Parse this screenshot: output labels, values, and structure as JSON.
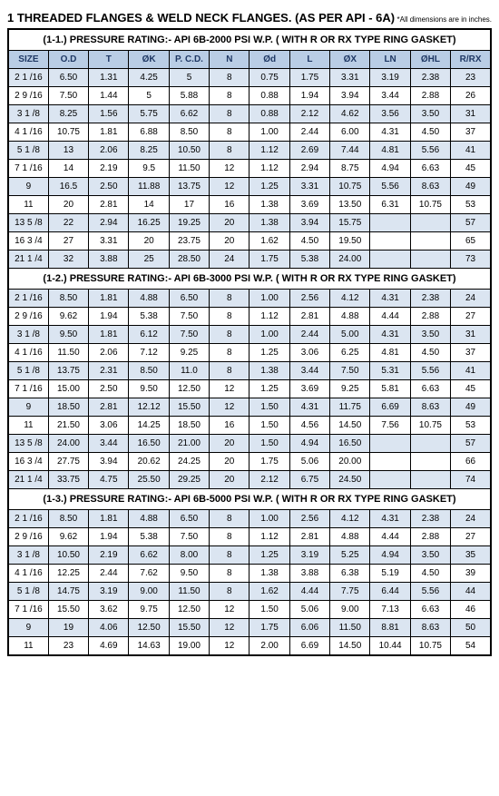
{
  "title": "1  THREADED FLANGES & WELD NECK FLANGES. (AS PER API - 6A)",
  "note": "*All dimensions are in inches.",
  "columns": [
    "SIZE",
    "O.D",
    "T",
    "ØK",
    "P. C.D.",
    "N",
    "Ød",
    "L",
    "ØX",
    "LN",
    "ØHL",
    "R/RX"
  ],
  "sections": [
    {
      "title": "(1-1.)  PRESSURE RATING:- API 6B-2000 PSI W.P. ( WITH R OR RX TYPE RING GASKET)",
      "rows": [
        [
          "2 1 /16",
          "6.50",
          "1.31",
          "4.25",
          "5",
          "8",
          "0.75",
          "1.75",
          "3.31",
          "3.19",
          "2.38",
          "23"
        ],
        [
          "2 9 /16",
          "7.50",
          "1.44",
          "5",
          "5.88",
          "8",
          "0.88",
          "1.94",
          "3.94",
          "3.44",
          "2.88",
          "26"
        ],
        [
          "3 1 /8",
          "8.25",
          "1.56",
          "5.75",
          "6.62",
          "8",
          "0.88",
          "2.12",
          "4.62",
          "3.56",
          "3.50",
          "31"
        ],
        [
          "4 1 /16",
          "10.75",
          "1.81",
          "6.88",
          "8.50",
          "8",
          "1.00",
          "2.44",
          "6.00",
          "4.31",
          "4.50",
          "37"
        ],
        [
          "5 1 /8",
          "13",
          "2.06",
          "8.25",
          "10.50",
          "8",
          "1.12",
          "2.69",
          "7.44",
          "4.81",
          "5.56",
          "41"
        ],
        [
          "7 1 /16",
          "14",
          "2.19",
          "9.5",
          "11.50",
          "12",
          "1.12",
          "2.94",
          "8.75",
          "4.94",
          "6.63",
          "45"
        ],
        [
          "9",
          "16.5",
          "2.50",
          "11.88",
          "13.75",
          "12",
          "1.25",
          "3.31",
          "10.75",
          "5.56",
          "8.63",
          "49"
        ],
        [
          "11",
          "20",
          "2.81",
          "14",
          "17",
          "16",
          "1.38",
          "3.69",
          "13.50",
          "6.31",
          "10.75",
          "53"
        ],
        [
          "13 5 /8",
          "22",
          "2.94",
          "16.25",
          "19.25",
          "20",
          "1.38",
          "3.94",
          "15.75",
          "",
          "",
          "57"
        ],
        [
          "16 3 /4",
          "27",
          "3.31",
          "20",
          "23.75",
          "20",
          "1.62",
          "4.50",
          "19.50",
          "",
          "",
          "65"
        ],
        [
          "21 1 /4",
          "32",
          "3.88",
          "25",
          "28.50",
          "24",
          "1.75",
          "5.38",
          "24.00",
          "",
          "",
          "73"
        ]
      ]
    },
    {
      "title": "(1-2.)  PRESSURE RATING:- API 6B-3000 PSI W.P. ( WITH R OR RX TYPE RING GASKET)",
      "rows": [
        [
          "2 1 /16",
          "8.50",
          "1.81",
          "4.88",
          "6.50",
          "8",
          "1.00",
          "2.56",
          "4.12",
          "4.31",
          "2.38",
          "24"
        ],
        [
          "2 9 /16",
          "9.62",
          "1.94",
          "5.38",
          "7.50",
          "8",
          "1.12",
          "2.81",
          "4.88",
          "4.44",
          "2.88",
          "27"
        ],
        [
          "3 1 /8",
          "9.50",
          "1.81",
          "6.12",
          "7.50",
          "8",
          "1.00",
          "2.44",
          "5.00",
          "4.31",
          "3.50",
          "31"
        ],
        [
          "4 1 /16",
          "11.50",
          "2.06",
          "7.12",
          "9.25",
          "8",
          "1.25",
          "3.06",
          "6.25",
          "4.81",
          "4.50",
          "37"
        ],
        [
          "5 1 /8",
          "13.75",
          "2.31",
          "8.50",
          "11.0",
          "8",
          "1.38",
          "3.44",
          "7.50",
          "5.31",
          "5.56",
          "41"
        ],
        [
          "7 1 /16",
          "15.00",
          "2.50",
          "9.50",
          "12.50",
          "12",
          "1.25",
          "3.69",
          "9.25",
          "5.81",
          "6.63",
          "45"
        ],
        [
          "9",
          "18.50",
          "2.81",
          "12.12",
          "15.50",
          "12",
          "1.50",
          "4.31",
          "11.75",
          "6.69",
          "8.63",
          "49"
        ],
        [
          "11",
          "21.50",
          "3.06",
          "14.25",
          "18.50",
          "16",
          "1.50",
          "4.56",
          "14.50",
          "7.56",
          "10.75",
          "53"
        ],
        [
          "13 5 /8",
          "24.00",
          "3.44",
          "16.50",
          "21.00",
          "20",
          "1.50",
          "4.94",
          "16.50",
          "",
          "",
          "57"
        ],
        [
          "16 3 /4",
          "27.75",
          "3.94",
          "20.62",
          "24.25",
          "20",
          "1.75",
          "5.06",
          "20.00",
          "",
          "",
          "66"
        ],
        [
          "21 1 /4",
          "33.75",
          "4.75",
          "25.50",
          "29.25",
          "20",
          "2.12",
          "6.75",
          "24.50",
          "",
          "",
          "74"
        ]
      ]
    },
    {
      "title": "(1-3.)  PRESSURE RATING:- API 6B-5000 PSI W.P. ( WITH R OR RX TYPE RING GASKET)",
      "rows": [
        [
          "2 1 /16",
          "8.50",
          "1.81",
          "4.88",
          "6.50",
          "8",
          "1.00",
          "2.56",
          "4.12",
          "4.31",
          "2.38",
          "24"
        ],
        [
          "2 9 /16",
          "9.62",
          "1.94",
          "5.38",
          "7.50",
          "8",
          "1.12",
          "2.81",
          "4.88",
          "4.44",
          "2.88",
          "27"
        ],
        [
          "3 1 /8",
          "10.50",
          "2.19",
          "6.62",
          "8.00",
          "8",
          "1.25",
          "3.19",
          "5.25",
          "4.94",
          "3.50",
          "35"
        ],
        [
          "4 1 /16",
          "12.25",
          "2.44",
          "7.62",
          "9.50",
          "8",
          "1.38",
          "3.88",
          "6.38",
          "5.19",
          "4.50",
          "39"
        ],
        [
          "5 1 /8",
          "14.75",
          "3.19",
          "9.00",
          "11.50",
          "8",
          "1.62",
          "4.44",
          "7.75",
          "6.44",
          "5.56",
          "44"
        ],
        [
          "7 1 /16",
          "15.50",
          "3.62",
          "9.75",
          "12.50",
          "12",
          "1.50",
          "5.06",
          "9.00",
          "7.13",
          "6.63",
          "46"
        ],
        [
          "9",
          "19",
          "4.06",
          "12.50",
          "15.50",
          "12",
          "1.75",
          "6.06",
          "11.50",
          "8.81",
          "8.63",
          "50"
        ],
        [
          "11",
          "23",
          "4.69",
          "14.63",
          "19.00",
          "12",
          "2.00",
          "6.69",
          "14.50",
          "10.44",
          "10.75",
          "54"
        ]
      ]
    }
  ]
}
